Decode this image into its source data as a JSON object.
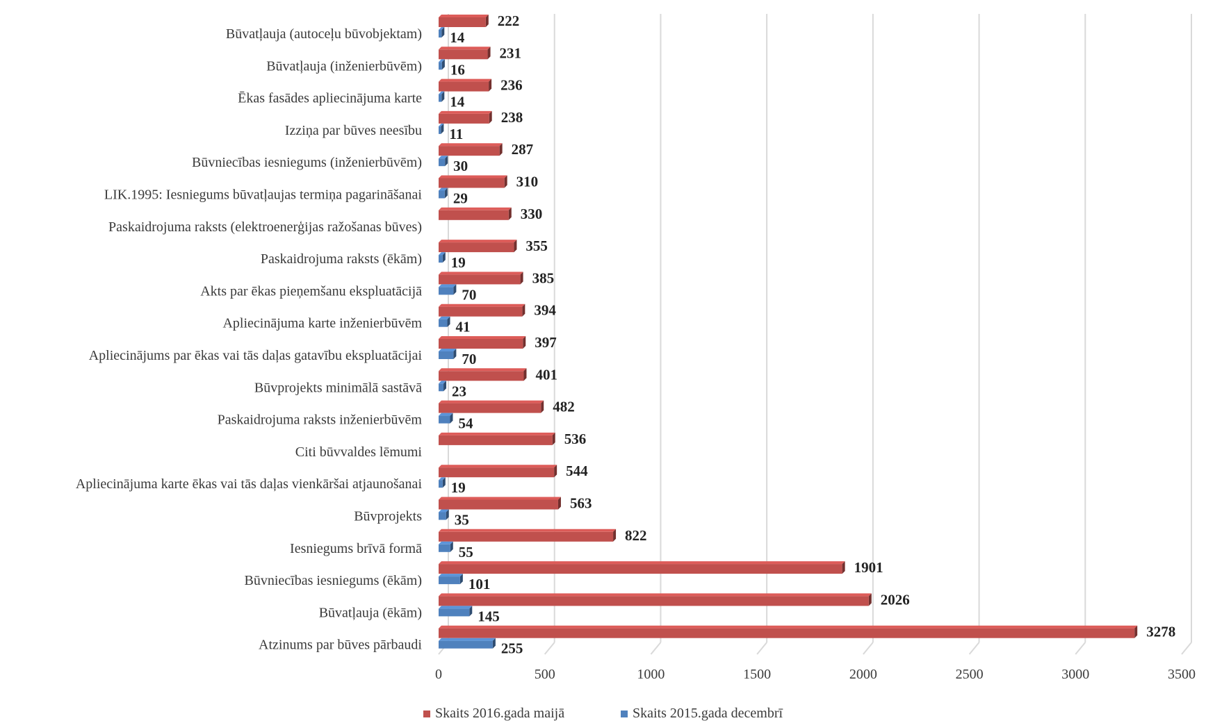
{
  "chart_data": {
    "type": "bar",
    "orientation": "horizontal",
    "categories": [
      "Būvatļauja (autoceļu būvobjektam)",
      "Būvatļauja (inženierbūvēm)",
      "Ēkas fasādes apliecinājuma karte",
      "Izziņa par būves neesību",
      "Būvniecības iesniegums (inženierbūvēm)",
      "LIK.1995: Iesniegums būvatļaujas termiņa pagarināšanai",
      "Paskaidrojuma raksts (elektroenerģijas ražošanas būves)",
      "Paskaidrojuma raksts (ēkām)",
      "Akts par ēkas pieņemšanu ekspluatācijā",
      "Apliecinājuma karte inženierbūvēm",
      "Apliecinājums par ēkas vai tās daļas gatavību ekspluatācijai",
      "Būvprojekts minimālā sastāvā",
      "Paskaidrojuma raksts inženierbūvēm",
      "Citi būvvaldes lēmumi",
      "Apliecinājuma karte ēkas vai tās daļas vienkāršai atjaunošanai",
      "Būvprojekts",
      "Iesniegums brīvā formā",
      "Būvniecības iesniegums (ēkām)",
      "Būvatļauja (ēkām)",
      "Atzinums par būves pārbaudi"
    ],
    "series": [
      {
        "name": "Skaits 2016.gada maijā",
        "color": "#c0504d",
        "values": [
          222,
          231,
          236,
          238,
          287,
          310,
          330,
          355,
          385,
          394,
          397,
          401,
          482,
          536,
          544,
          563,
          822,
          1901,
          2026,
          3278
        ]
      },
      {
        "name": "Skaits 2015.gada decembrī",
        "color": "#4f81bd",
        "values": [
          14,
          16,
          14,
          11,
          30,
          29,
          null,
          19,
          70,
          41,
          70,
          23,
          54,
          null,
          19,
          35,
          55,
          101,
          145,
          255
        ]
      }
    ],
    "xlim": [
      0,
      3500
    ],
    "x_ticks": [
      "0",
      "500",
      "1000",
      "1500",
      "2000",
      "2500",
      "3000",
      "3500"
    ],
    "grid": "vertical",
    "legend_position": "bottom",
    "title": "",
    "xlabel": "",
    "ylabel": ""
  }
}
